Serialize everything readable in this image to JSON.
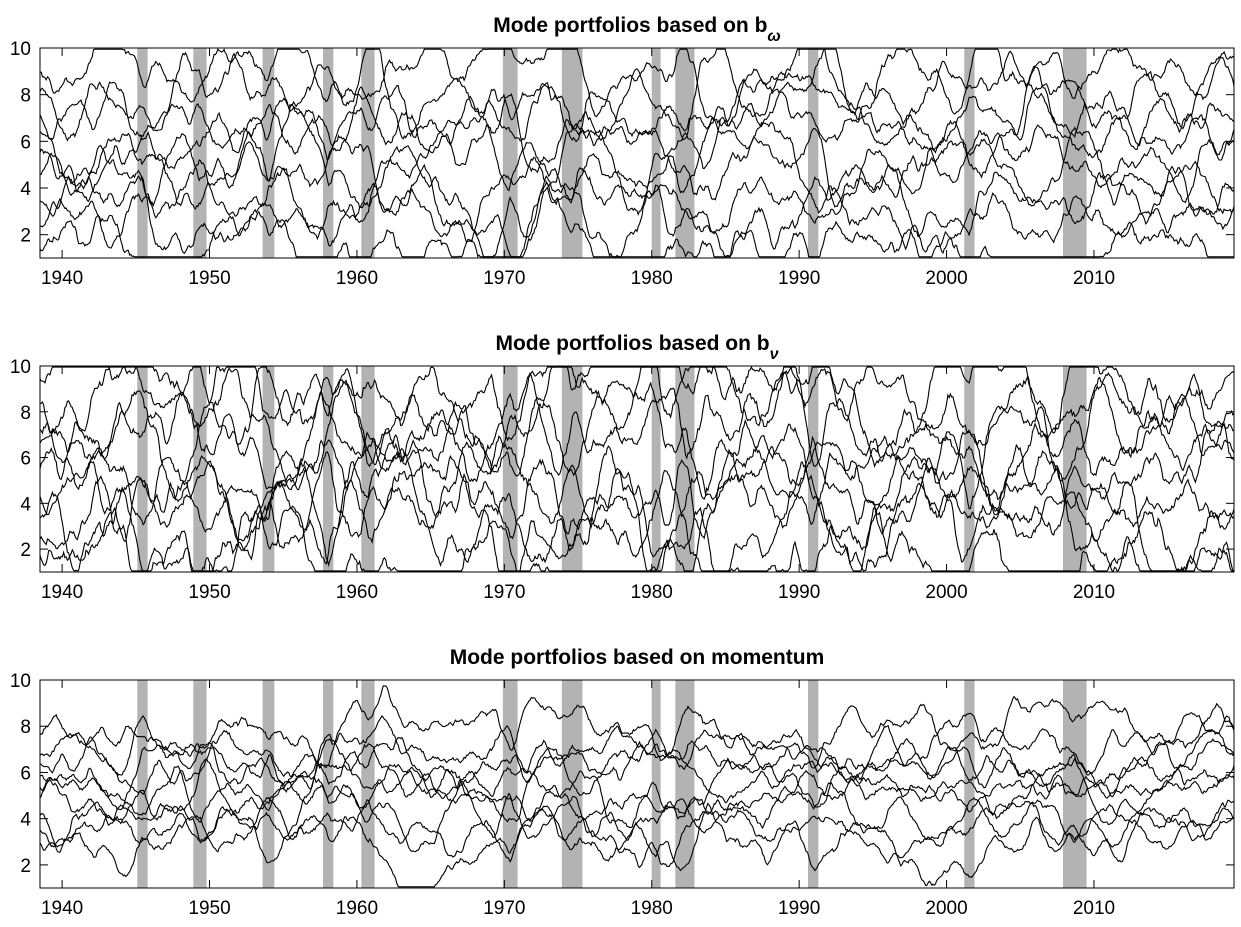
{
  "chart_data": [
    {
      "type": "line",
      "title": "Mode portfolios based on  b",
      "title_subscript": "ω",
      "xlim": [
        1938.5,
        2019.5
      ],
      "ylim": [
        1,
        10
      ],
      "xticks": [
        1940,
        1950,
        1960,
        1970,
        1980,
        1990,
        2000,
        2010
      ],
      "yticks": [
        2,
        4,
        6,
        8,
        10
      ],
      "line_color": "#000000",
      "series_count": 9,
      "series_baselines": [
        1.5,
        2.5,
        3.5,
        4.5,
        5.4,
        6.3,
        7.2,
        8.2,
        9.2
      ],
      "series_variability": "high",
      "shaded_periods": [
        [
          1945.1,
          1945.8
        ],
        [
          1948.9,
          1949.8
        ],
        [
          1953.6,
          1954.4
        ],
        [
          1957.7,
          1958.4
        ],
        [
          1960.3,
          1961.2
        ],
        [
          1969.9,
          1970.9
        ],
        [
          1973.9,
          1975.3
        ],
        [
          1980.0,
          1980.6
        ],
        [
          1981.6,
          1982.9
        ],
        [
          1990.6,
          1991.3
        ],
        [
          2001.2,
          2001.9
        ],
        [
          2007.9,
          2009.5
        ]
      ],
      "shade_color": "#b3b3b3"
    },
    {
      "type": "line",
      "title": "Mode portfolios based on b",
      "title_subscript": "ν",
      "xlim": [
        1938.5,
        2019.5
      ],
      "ylim": [
        1,
        10
      ],
      "xticks": [
        1940,
        1950,
        1960,
        1970,
        1980,
        1990,
        2000,
        2010
      ],
      "yticks": [
        2,
        4,
        6,
        8,
        10
      ],
      "line_color": "#000000",
      "series_count": 9,
      "series_baselines": [
        1.6,
        2.5,
        3.4,
        4.3,
        5.3,
        6.3,
        7.3,
        8.3,
        9.5
      ],
      "series_variability": "very high",
      "shaded_periods": [
        [
          1945.1,
          1945.8
        ],
        [
          1948.9,
          1949.8
        ],
        [
          1953.6,
          1954.4
        ],
        [
          1957.7,
          1958.4
        ],
        [
          1960.3,
          1961.2
        ],
        [
          1969.9,
          1970.9
        ],
        [
          1973.9,
          1975.3
        ],
        [
          1980.0,
          1980.6
        ],
        [
          1981.6,
          1982.9
        ],
        [
          1990.6,
          1991.3
        ],
        [
          2001.2,
          2001.9
        ],
        [
          2007.9,
          2009.5
        ]
      ],
      "shade_color": "#b3b3b3"
    },
    {
      "type": "line",
      "title": "Mode portfolios based on momentum",
      "title_subscript": "",
      "xlim": [
        1938.5,
        2019.5
      ],
      "ylim": [
        1,
        10
      ],
      "xticks": [
        1940,
        1950,
        1960,
        1970,
        1980,
        1990,
        2000,
        2010
      ],
      "yticks": [
        2,
        4,
        6,
        8,
        10
      ],
      "line_color": "#000000",
      "series_count": 9,
      "series_baselines": [
        3.0,
        3.6,
        4.2,
        4.8,
        5.3,
        5.8,
        6.3,
        6.9,
        7.6
      ],
      "series_variability": "medium",
      "shaded_periods": [
        [
          1945.1,
          1945.8
        ],
        [
          1948.9,
          1949.8
        ],
        [
          1953.6,
          1954.4
        ],
        [
          1957.7,
          1958.4
        ],
        [
          1960.3,
          1961.2
        ],
        [
          1969.9,
          1970.9
        ],
        [
          1973.9,
          1975.3
        ],
        [
          1980.0,
          1980.6
        ],
        [
          1981.6,
          1982.9
        ],
        [
          1990.6,
          1991.3
        ],
        [
          2001.2,
          2001.9
        ],
        [
          2007.9,
          2009.5
        ]
      ],
      "shade_color": "#b3b3b3"
    }
  ]
}
